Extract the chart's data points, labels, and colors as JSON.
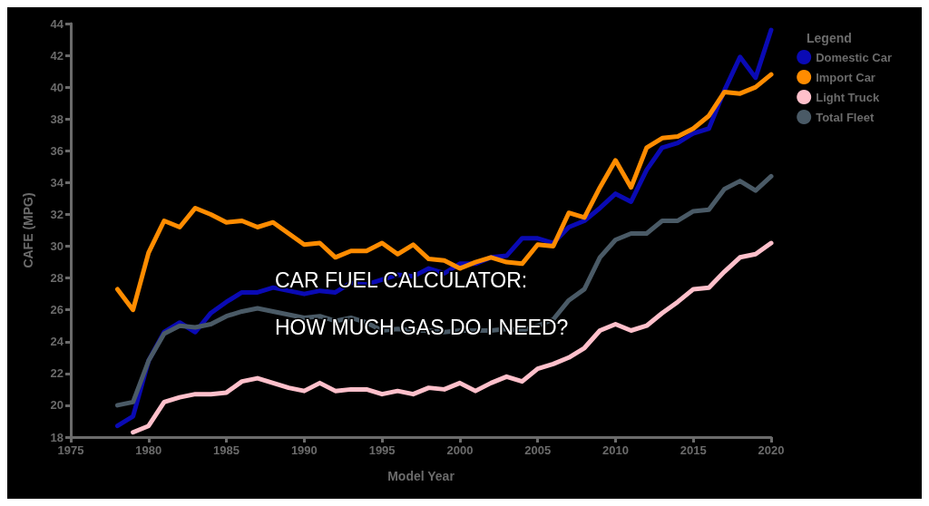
{
  "chart_data": {
    "type": "line",
    "title": "CAR FUEL CALCULATOR: HOW MUCH GAS DO I NEED?",
    "xlabel": "Model Year",
    "ylabel": "CAFE (MPG)",
    "legend_title": "Legend",
    "legend": "top right",
    "grid": false,
    "marker": "none",
    "line_style": "solid",
    "xlim": [
      1975,
      2020
    ],
    "xticks": [
      1975,
      1980,
      1985,
      1990,
      1995,
      2000,
      2005,
      2010,
      2015,
      2020
    ],
    "ylim": [
      18,
      44
    ],
    "yticks": [
      18,
      20,
      22,
      24,
      26,
      28,
      30,
      32,
      34,
      36,
      38,
      40,
      42,
      44
    ],
    "series": [
      {
        "name": "Domestic Car",
        "color": "#0a0ab4",
        "x": [
          1978,
          1979,
          1980,
          1981,
          1982,
          1983,
          1984,
          1985,
          1986,
          1987,
          1988,
          1989,
          1990,
          1991,
          1992,
          1993,
          1994,
          1995,
          1996,
          1997,
          1998,
          1999,
          2000,
          2001,
          2002,
          2003,
          2004,
          2005,
          2006,
          2007,
          2008,
          2009,
          2010,
          2011,
          2012,
          2013,
          2014,
          2015,
          2016,
          2017,
          2018,
          2019,
          2020
        ],
        "values": [
          18.7,
          19.3,
          22.8,
          24.6,
          25.2,
          24.6,
          25.8,
          26.5,
          27.1,
          27.1,
          27.4,
          27.2,
          27.0,
          27.2,
          27.1,
          27.7,
          27.6,
          27.9,
          28.2,
          28.1,
          28.6,
          28.3,
          28.9,
          28.9,
          29.3,
          29.4,
          30.5,
          30.5,
          30.2,
          31.2,
          31.6,
          32.4,
          33.3,
          32.8,
          34.8,
          36.2,
          36.5,
          37.1,
          37.4,
          39.8,
          41.9,
          40.6,
          43.6
        ]
      },
      {
        "name": "Import Car",
        "color": "#ff8c00",
        "x": [
          1978,
          1979,
          1980,
          1981,
          1982,
          1983,
          1984,
          1985,
          1986,
          1987,
          1988,
          1989,
          1990,
          1991,
          1992,
          1993,
          1994,
          1995,
          1996,
          1997,
          1998,
          1999,
          2000,
          2001,
          2002,
          2003,
          2004,
          2005,
          2006,
          2007,
          2008,
          2009,
          2010,
          2011,
          2012,
          2013,
          2014,
          2015,
          2016,
          2017,
          2018,
          2019,
          2020
        ],
        "values": [
          27.3,
          26.0,
          29.6,
          31.6,
          31.2,
          32.4,
          32.0,
          31.5,
          31.6,
          31.2,
          31.5,
          30.8,
          30.1,
          30.2,
          29.3,
          29.7,
          29.7,
          30.2,
          29.5,
          30.1,
          29.2,
          29.1,
          28.6,
          29.0,
          29.3,
          29.0,
          28.9,
          30.1,
          30.0,
          32.1,
          31.8,
          33.7,
          35.4,
          33.7,
          36.2,
          36.8,
          36.9,
          37.4,
          38.2,
          39.7,
          39.6,
          40.0,
          40.8
        ]
      },
      {
        "name": "Light Truck",
        "color": "#ffc0cb",
        "x": [
          1979,
          1980,
          1981,
          1982,
          1983,
          1984,
          1985,
          1986,
          1987,
          1988,
          1989,
          1990,
          1991,
          1992,
          1993,
          1994,
          1995,
          1996,
          1997,
          1998,
          1999,
          2000,
          2001,
          2002,
          2003,
          2004,
          2005,
          2006,
          2007,
          2008,
          2009,
          2010,
          2011,
          2012,
          2013,
          2014,
          2015,
          2016,
          2017,
          2018,
          2019,
          2020
        ],
        "values": [
          18.3,
          18.7,
          20.2,
          20.5,
          20.7,
          20.7,
          20.8,
          21.5,
          21.7,
          21.4,
          21.1,
          20.9,
          21.4,
          20.9,
          21.0,
          21.0,
          20.7,
          20.9,
          20.7,
          21.1,
          21.0,
          21.4,
          20.9,
          21.4,
          21.8,
          21.5,
          22.3,
          22.6,
          23.0,
          23.6,
          24.7,
          25.1,
          24.7,
          25.0,
          25.8,
          26.5,
          27.3,
          27.4,
          28.4,
          29.3,
          29.5,
          30.2
        ]
      },
      {
        "name": "Total Fleet",
        "color": "#4a5a66",
        "x": [
          1978,
          1979,
          1980,
          1981,
          1982,
          1983,
          1984,
          1985,
          1986,
          1987,
          1988,
          1989,
          1990,
          1991,
          1992,
          1993,
          1994,
          1995,
          1996,
          1997,
          1998,
          1999,
          2000,
          2001,
          2002,
          2003,
          2004,
          2005,
          2006,
          2007,
          2008,
          2009,
          2010,
          2011,
          2012,
          2013,
          2014,
          2015,
          2016,
          2017,
          2018,
          2019,
          2020
        ],
        "values": [
          20.0,
          20.2,
          22.8,
          24.5,
          25.0,
          24.9,
          25.1,
          25.6,
          25.9,
          26.1,
          25.9,
          25.7,
          25.5,
          25.6,
          25.3,
          25.5,
          25.2,
          24.7,
          24.8,
          24.7,
          24.7,
          24.6,
          24.7,
          24.7,
          24.7,
          24.8,
          24.7,
          25.0,
          25.4,
          26.6,
          27.3,
          29.3,
          30.4,
          30.8,
          30.8,
          31.6,
          31.6,
          32.2,
          32.3,
          33.6,
          34.1,
          33.5,
          34.4
        ]
      }
    ]
  }
}
